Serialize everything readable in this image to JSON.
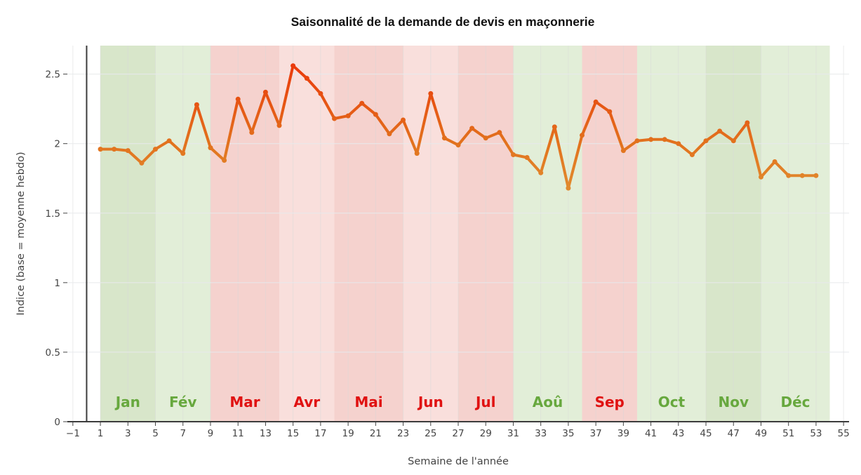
{
  "chart_data": {
    "type": "line",
    "title": "Saisonnalité de la demande de devis en maçonnerie",
    "xlabel": "Semaine de l'année",
    "ylabel": "Indice (base = moyenne hebdo)",
    "xlim": [
      -1.4,
      55.4
    ],
    "ylim": [
      0,
      2.705
    ],
    "grid": true,
    "legend": "none",
    "x_ticks": [
      -1,
      1,
      3,
      5,
      7,
      9,
      11,
      13,
      15,
      17,
      19,
      21,
      23,
      25,
      27,
      29,
      31,
      33,
      35,
      37,
      39,
      41,
      43,
      45,
      47,
      49,
      51,
      53,
      55
    ],
    "y_ticks": [
      0,
      0.5,
      1,
      1.5,
      2,
      2.5
    ],
    "x": [
      1,
      2,
      3,
      4,
      5,
      6,
      7,
      8,
      9,
      10,
      11,
      12,
      13,
      14,
      15,
      16,
      17,
      18,
      19,
      20,
      21,
      22,
      23,
      24,
      25,
      26,
      27,
      28,
      29,
      30,
      31,
      32,
      33,
      34,
      35,
      36,
      37,
      38,
      39,
      40,
      41,
      42,
      43,
      44,
      45,
      46,
      47,
      48,
      49,
      50,
      51,
      52,
      53
    ],
    "y": [
      1.96,
      1.96,
      1.95,
      1.86,
      1.96,
      2.02,
      1.93,
      2.28,
      1.97,
      1.88,
      2.32,
      2.08,
      2.37,
      2.13,
      2.56,
      2.47,
      2.36,
      2.18,
      2.2,
      2.29,
      2.21,
      2.07,
      2.17,
      1.93,
      2.36,
      2.04,
      1.99,
      2.11,
      2.04,
      2.08,
      1.92,
      1.9,
      1.79,
      2.12,
      1.68,
      2.06,
      2.3,
      2.23,
      1.95,
      2.02,
      2.03,
      2.03,
      2.0,
      1.92,
      2.02,
      2.09,
      2.02,
      2.15,
      1.76,
      1.87,
      1.77,
      1.77,
      1.77
    ],
    "line": {
      "width": 4,
      "marker_diameter": 7,
      "color_high": "#ea3a0b",
      "color_mid": "#e2711d",
      "color_low": "#e18a2e"
    },
    "month_bands": [
      {
        "label": "Jan",
        "start_week": 1,
        "end_week": 5,
        "fill": "#d8e6ca",
        "label_color": "#67a83e"
      },
      {
        "label": "Fév",
        "start_week": 5,
        "end_week": 9,
        "fill": "#e2eed8",
        "label_color": "#67a83e"
      },
      {
        "label": "Mar",
        "start_week": 9,
        "end_week": 14,
        "fill": "#f5d2ce",
        "label_color": "#e01212"
      },
      {
        "label": "Avr",
        "start_week": 14,
        "end_week": 18,
        "fill": "#f9dfdc",
        "label_color": "#e01212"
      },
      {
        "label": "Mai",
        "start_week": 18,
        "end_week": 23,
        "fill": "#f5d2ce",
        "label_color": "#e01212"
      },
      {
        "label": "Jun",
        "start_week": 23,
        "end_week": 27,
        "fill": "#f9dfdc",
        "label_color": "#e01212"
      },
      {
        "label": "Jul",
        "start_week": 27,
        "end_week": 31,
        "fill": "#f5d2ce",
        "label_color": "#e01212"
      },
      {
        "label": "Aoû",
        "start_week": 31,
        "end_week": 36,
        "fill": "#e2eed8",
        "label_color": "#67a83e"
      },
      {
        "label": "Sep",
        "start_week": 36,
        "end_week": 40,
        "fill": "#f5d2ce",
        "label_color": "#e01212"
      },
      {
        "label": "Oct",
        "start_week": 40,
        "end_week": 45,
        "fill": "#e2eed8",
        "label_color": "#67a83e"
      },
      {
        "label": "Nov",
        "start_week": 45,
        "end_week": 49,
        "fill": "#d8e6ca",
        "label_color": "#67a83e"
      },
      {
        "label": "Déc",
        "start_week": 49,
        "end_week": 54,
        "fill": "#e2eed8",
        "label_color": "#67a83e"
      }
    ],
    "colors": {
      "grid_y": "#e7e9ec",
      "grid_x": "#d9d9d9",
      "zeroline": "#3c3c3c",
      "tick_text": "#444444",
      "title_text": "#111111",
      "background": "#ffffff"
    }
  }
}
